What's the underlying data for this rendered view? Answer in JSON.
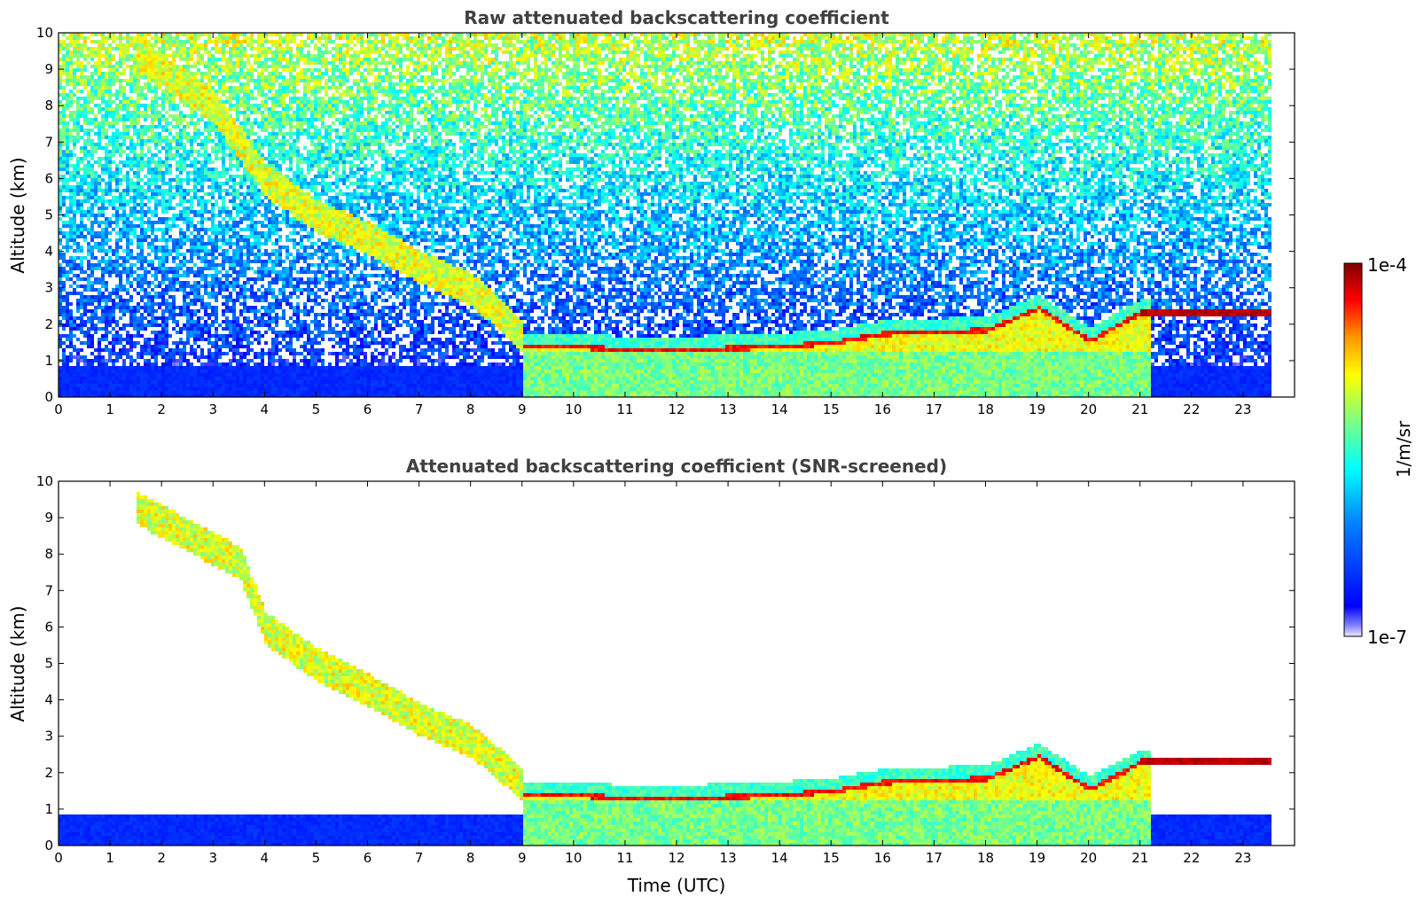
{
  "chart_data": [
    {
      "type": "heatmap",
      "title": "Raw attenuated backscattering coefficient",
      "xlabel": "",
      "ylabel": "Altitude (km)",
      "xlim": [
        0,
        24
      ],
      "ylim": [
        0,
        10
      ],
      "xticks": [
        "0",
        "1",
        "2",
        "3",
        "4",
        "5",
        "6",
        "7",
        "8",
        "9",
        "10",
        "11",
        "12",
        "13",
        "14",
        "15",
        "16",
        "17",
        "18",
        "19",
        "20",
        "21",
        "22",
        "23"
      ],
      "yticks": [
        "0",
        "1",
        "2",
        "3",
        "4",
        "5",
        "6",
        "7",
        "8",
        "9",
        "10"
      ],
      "data_end_time": 23.5,
      "features": {
        "aerosol_layer_descent": {
          "time": [
            1.5,
            3.0,
            4.0,
            5.0,
            6.0,
            7.0,
            8.0,
            9.0
          ],
          "altitude_km": [
            9.5,
            8.0,
            6.0,
            5.0,
            4.4,
            3.6,
            3.0,
            1.7
          ]
        },
        "boundary_layer_top": {
          "time": [
            10.0,
            11.0,
            12.0,
            13.0,
            14.0,
            15.0,
            16.0,
            17.0,
            18.0,
            19.0,
            20.0,
            21.0,
            22.0,
            23.5
          ],
          "altitude_km": [
            1.45,
            1.35,
            1.35,
            1.4,
            1.45,
            1.55,
            1.8,
            1.85,
            1.9,
            2.5,
            1.6,
            2.4,
            2.4,
            2.35
          ]
        }
      },
      "noise_background": true
    },
    {
      "type": "heatmap",
      "title": "Attenuated backscattering coefficient (SNR-screened)",
      "xlabel": "Time (UTC)",
      "ylabel": "Altitude (km)",
      "xlim": [
        0,
        24
      ],
      "ylim": [
        0,
        10
      ],
      "xticks": [
        "0",
        "1",
        "2",
        "3",
        "4",
        "5",
        "6",
        "7",
        "8",
        "9",
        "10",
        "11",
        "12",
        "13",
        "14",
        "15",
        "16",
        "17",
        "18",
        "19",
        "20",
        "21",
        "22",
        "23"
      ],
      "yticks": [
        "0",
        "1",
        "2",
        "3",
        "4",
        "5",
        "6",
        "7",
        "8",
        "9",
        "10"
      ],
      "data_end_time": 23.5,
      "features": {
        "aerosol_layer_descent": {
          "time": [
            1.5,
            3.5,
            4.0,
            5.0,
            6.0,
            7.0,
            8.0,
            9.0
          ],
          "altitude_km": [
            9.3,
            7.8,
            6.0,
            5.0,
            4.3,
            3.5,
            2.9,
            1.7
          ]
        },
        "boundary_layer_top": {
          "time": [
            10.0,
            11.0,
            12.0,
            13.0,
            14.0,
            15.0,
            16.0,
            17.0,
            18.0,
            19.0,
            20.0,
            21.0,
            22.0,
            23.5
          ],
          "altitude_km": [
            1.45,
            1.35,
            1.35,
            1.4,
            1.45,
            1.55,
            1.8,
            1.85,
            1.9,
            2.5,
            1.6,
            2.35,
            2.35,
            2.35
          ]
        }
      },
      "noise_background": false
    }
  ],
  "colorbar": {
    "max_label": "1e-4",
    "min_label": "1e-7",
    "unit_label": "1/m/sr",
    "colormap": "jet"
  }
}
